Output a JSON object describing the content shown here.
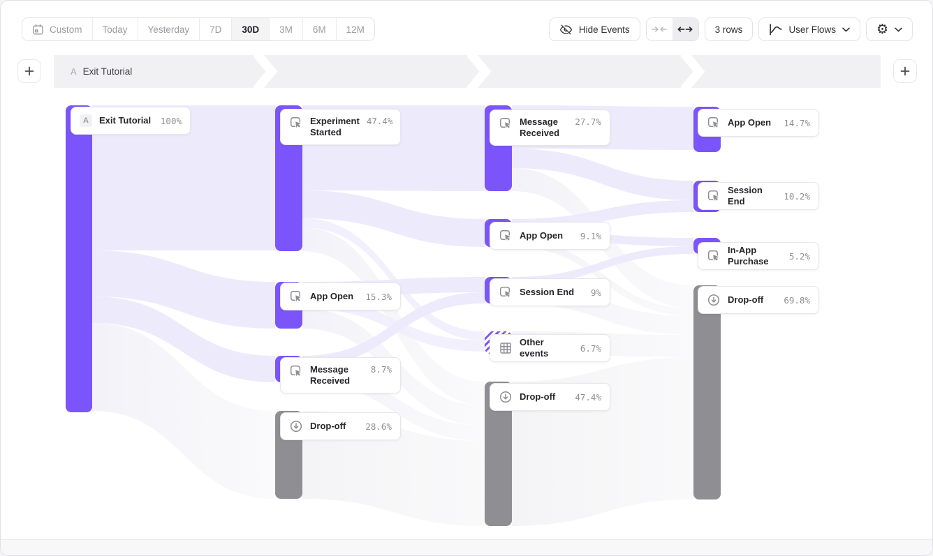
{
  "toolbar": {
    "date_ranges": [
      {
        "id": "custom",
        "label": "Custom",
        "icon": "calendar-icon",
        "active": false
      },
      {
        "id": "today",
        "label": "Today",
        "active": false
      },
      {
        "id": "yesterday",
        "label": "Yesterday",
        "active": false
      },
      {
        "id": "7d",
        "label": "7D",
        "active": false
      },
      {
        "id": "30d",
        "label": "30D",
        "active": true
      },
      {
        "id": "3m",
        "label": "3M",
        "active": false
      },
      {
        "id": "6m",
        "label": "6M",
        "active": false
      },
      {
        "id": "12m",
        "label": "12M",
        "active": false
      }
    ],
    "hide_events_label": "Hide Events",
    "rows_label": "3 rows",
    "view_selector_label": "User Flows",
    "collapse_icon": "arrows-collapse-icon",
    "expand_icon": "arrows-expand-icon",
    "settings_icon": "gear-icon"
  },
  "funnel_header": {
    "steps": [
      {
        "badge": "A",
        "label": "Exit Tutorial"
      }
    ],
    "add_step_left": "+",
    "add_step_right": "+"
  },
  "chart_data": {
    "type": "sankey",
    "unit": "percent-of-users",
    "start_event": "Exit Tutorial",
    "colors": {
      "event_bar": "#7b55fb",
      "dropoff_bar": "#8f8f93",
      "ribbon": "#edeafc"
    },
    "nodes": [
      {
        "id": "c1-exit-tutorial",
        "col": 1,
        "label": "Exit Tutorial",
        "badge": "A",
        "percent": "100%",
        "value": 100,
        "kind": "start"
      },
      {
        "id": "c2-experiment-started",
        "col": 2,
        "label": "Experiment Started",
        "percent": "47.4%",
        "value": 47.4,
        "kind": "event"
      },
      {
        "id": "c2-app-open",
        "col": 2,
        "label": "App Open",
        "percent": "15.3%",
        "value": 15.3,
        "kind": "event"
      },
      {
        "id": "c2-message-received",
        "col": 2,
        "label": "Message Received",
        "percent": "8.7%",
        "value": 8.7,
        "kind": "event"
      },
      {
        "id": "c2-drop-off",
        "col": 2,
        "label": "Drop-off",
        "percent": "28.6%",
        "value": 28.6,
        "kind": "dropoff"
      },
      {
        "id": "c3-message-received",
        "col": 3,
        "label": "Message Received",
        "percent": "27.7%",
        "value": 27.7,
        "kind": "event"
      },
      {
        "id": "c3-app-open",
        "col": 3,
        "label": "App Open",
        "percent": "9.1%",
        "value": 9.1,
        "kind": "event"
      },
      {
        "id": "c3-session-end",
        "col": 3,
        "label": "Session End",
        "percent": "9%",
        "value": 9,
        "kind": "event"
      },
      {
        "id": "c3-other-events",
        "col": 3,
        "label": "Other events",
        "percent": "6.7%",
        "value": 6.7,
        "kind": "other"
      },
      {
        "id": "c3-drop-off",
        "col": 3,
        "label": "Drop-off",
        "percent": "47.4%",
        "value": 47.4,
        "kind": "dropoff"
      },
      {
        "id": "c4-app-open",
        "col": 4,
        "label": "App Open",
        "percent": "14.7%",
        "value": 14.7,
        "kind": "event"
      },
      {
        "id": "c4-session-end",
        "col": 4,
        "label": "Session End",
        "percent": "10.2%",
        "value": 10.2,
        "kind": "event"
      },
      {
        "id": "c4-in-app-purchase",
        "col": 4,
        "label": "In-App Purchase",
        "percent": "5.2%",
        "value": 5.2,
        "kind": "event"
      },
      {
        "id": "c4-drop-off",
        "col": 4,
        "label": "Drop-off",
        "percent": "69.8%",
        "value": 69.8,
        "kind": "dropoff"
      }
    ],
    "link_values_estimated": true,
    "links": [
      {
        "from": "c1-exit-tutorial",
        "to": "c2-experiment-started",
        "value": 47.4
      },
      {
        "from": "c1-exit-tutorial",
        "to": "c2-app-open",
        "value": 15.3
      },
      {
        "from": "c1-exit-tutorial",
        "to": "c2-message-received",
        "value": 8.7
      },
      {
        "from": "c1-exit-tutorial",
        "to": "c2-drop-off",
        "value": 28.6
      },
      {
        "from": "c2-experiment-started",
        "to": "c3-message-received",
        "value": 27.7
      },
      {
        "from": "c2-experiment-started",
        "to": "c3-app-open",
        "value": 9.1
      },
      {
        "from": "c2-experiment-started",
        "to": "c3-other-events",
        "value": 3.0
      },
      {
        "from": "c2-experiment-started",
        "to": "c3-drop-off",
        "value": 7.6
      },
      {
        "from": "c2-app-open",
        "to": "c3-session-end",
        "value": 5.0
      },
      {
        "from": "c2-app-open",
        "to": "c3-other-events",
        "value": 3.7
      },
      {
        "from": "c2-app-open",
        "to": "c3-drop-off",
        "value": 6.6
      },
      {
        "from": "c2-message-received",
        "to": "c3-session-end",
        "value": 4.0
      },
      {
        "from": "c2-message-received",
        "to": "c3-drop-off",
        "value": 4.7
      },
      {
        "from": "c2-drop-off",
        "to": "c3-drop-off",
        "value": 28.6
      },
      {
        "from": "c3-message-received",
        "to": "c4-app-open",
        "value": 14.1
      },
      {
        "from": "c3-message-received",
        "to": "c4-session-end",
        "value": 6.4
      },
      {
        "from": "c3-message-received",
        "to": "c4-drop-off",
        "value": 7.2
      },
      {
        "from": "c3-app-open",
        "to": "c4-session-end",
        "value": 3.8
      },
      {
        "from": "c3-app-open",
        "to": "c4-in-app-purchase",
        "value": 2.7
      },
      {
        "from": "c3-app-open",
        "to": "c4-drop-off",
        "value": 2.6
      },
      {
        "from": "c3-session-end",
        "to": "c4-in-app-purchase",
        "value": 2.5
      },
      {
        "from": "c3-session-end",
        "to": "c4-drop-off",
        "value": 6.5
      },
      {
        "from": "c3-other-events",
        "to": "c4-drop-off",
        "value": 6.7
      },
      {
        "from": "c3-drop-off",
        "to": "c4-drop-off",
        "value": 47.4
      }
    ]
  }
}
